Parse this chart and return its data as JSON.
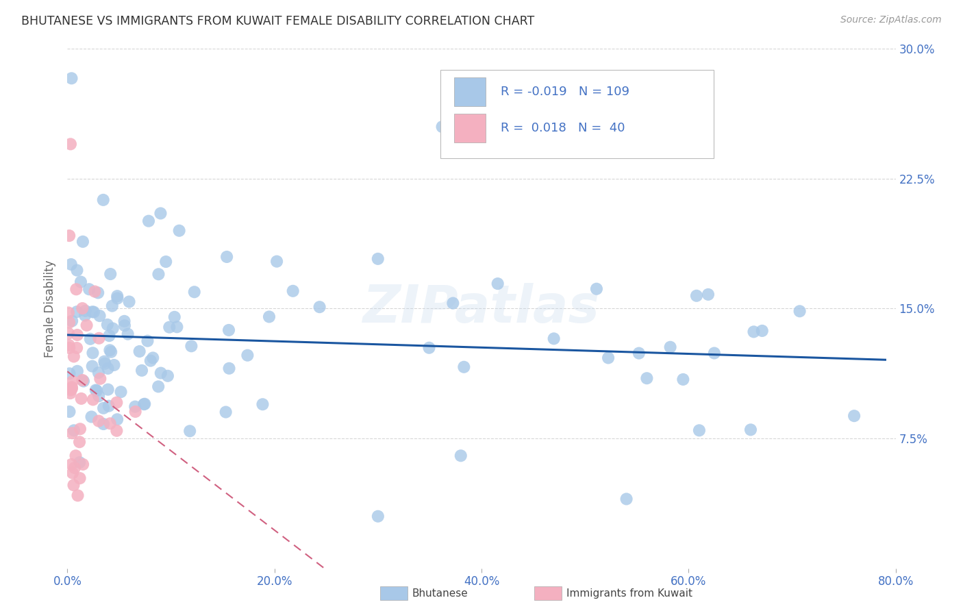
{
  "title": "BHUTANESE VS IMMIGRANTS FROM KUWAIT FEMALE DISABILITY CORRELATION CHART",
  "source": "Source: ZipAtlas.com",
  "ylabel": "Female Disability",
  "watermark": "ZIPatlas",
  "legend_labels": [
    "Bhutanese",
    "Immigrants from Kuwait"
  ],
  "series1_R": "-0.019",
  "series1_N": "109",
  "series1_color": "#a8c8e8",
  "series1_line_color": "#1a56a0",
  "series2_R": "0.018",
  "series2_N": "40",
  "series2_color": "#f4b0c0",
  "series2_line_color": "#d06080",
  "background_color": "#ffffff",
  "grid_color": "#cccccc",
  "title_color": "#333333",
  "axis_label_color": "#4472c4",
  "xlim": [
    0.0,
    0.8
  ],
  "ylim": [
    0.0,
    0.3
  ],
  "xticks": [
    0.0,
    0.2,
    0.4,
    0.6,
    0.8
  ],
  "xtick_labels": [
    "0.0%",
    "20.0%",
    "40.0%",
    "60.0%",
    "80.0%"
  ],
  "yticks": [
    0.075,
    0.15,
    0.225,
    0.3
  ],
  "ytick_labels": [
    "7.5%",
    "15.0%",
    "22.5%",
    "30.0%"
  ]
}
